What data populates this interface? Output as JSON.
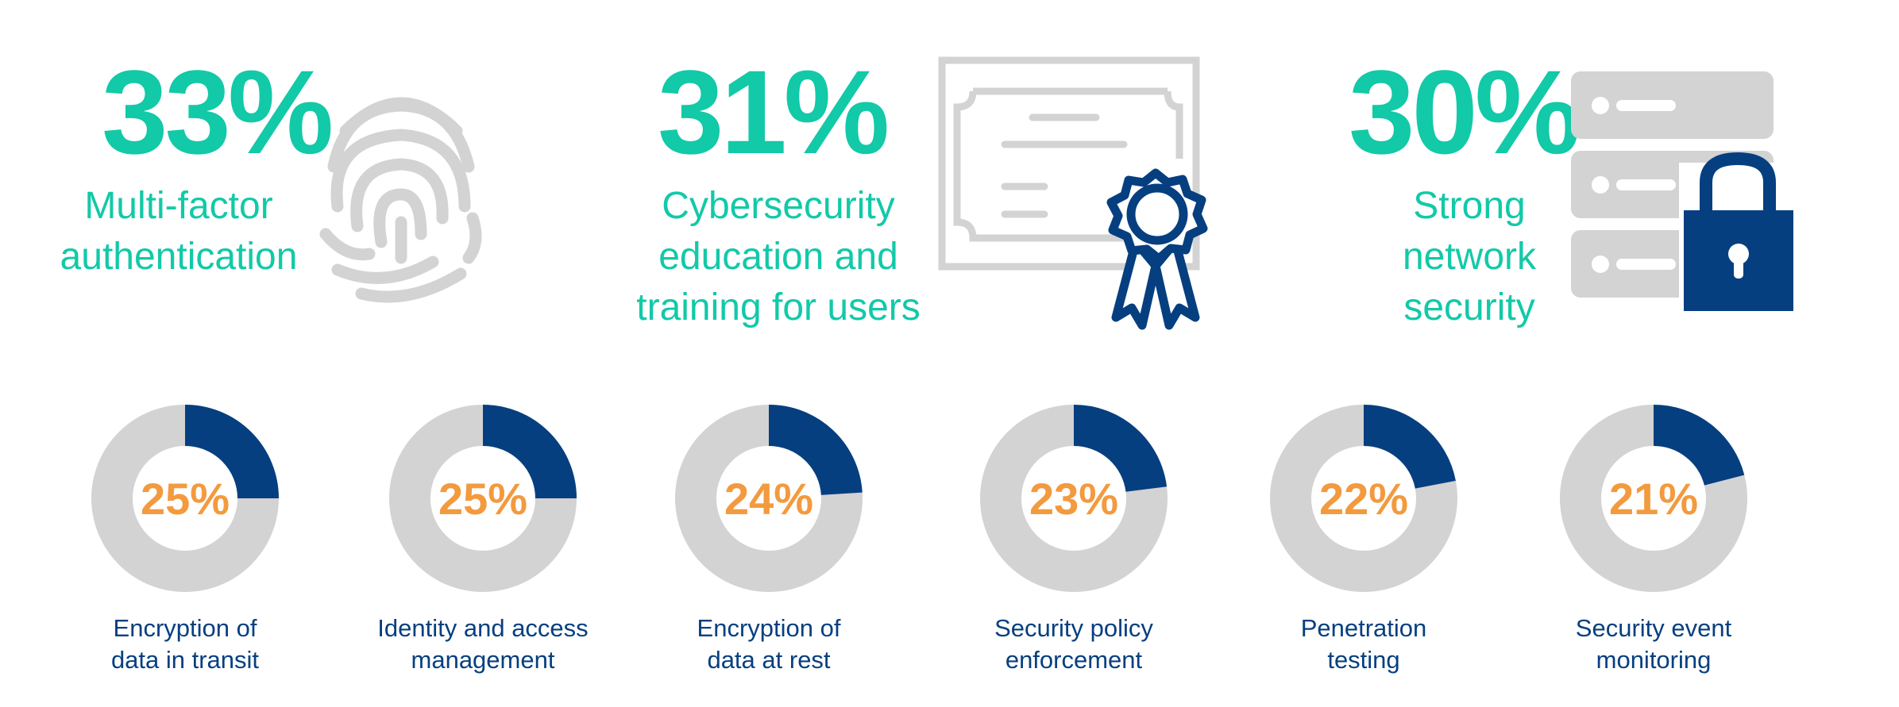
{
  "colors": {
    "teal": "#12c9a8",
    "navy": "#063f80",
    "gray": "#d3d3d3",
    "orange": "#f39a3e"
  },
  "highlights": [
    {
      "value": "33%",
      "label": "Multi-factor\nauthentication",
      "icon": "fingerprint-icon"
    },
    {
      "value": "31%",
      "label": "Cybersecurity\neducation and\ntraining for users",
      "icon": "certificate-icon"
    },
    {
      "value": "30%",
      "label": "Strong\nnetwork\nsecurity",
      "icon": "server-lock-icon"
    }
  ],
  "chart_data": {
    "type": "pie",
    "variant": "donut",
    "series": [
      {
        "category": "Encryption of\ndata in transit",
        "value": 25,
        "display": "25%"
      },
      {
        "category": "Identity and access\nmanagement",
        "value": 25,
        "display": "25%"
      },
      {
        "category": "Encryption of\ndata at rest",
        "value": 24,
        "display": "24%"
      },
      {
        "category": "Security policy\nenforcement",
        "value": 23,
        "display": "23%"
      },
      {
        "category": "Penetration\ntesting",
        "value": 22,
        "display": "22%"
      },
      {
        "category": "Security event\nmonitoring",
        "value": 21,
        "display": "21%"
      }
    ]
  }
}
